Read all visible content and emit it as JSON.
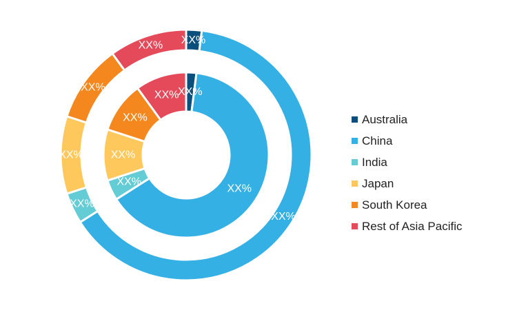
{
  "chart_data": {
    "type": "pie",
    "variant": "nested-donut",
    "categories": [
      "Australia",
      "China",
      "India",
      "Japan",
      "South Korea",
      "Rest of Asia Pacific"
    ],
    "colors": [
      "#0B4F7C",
      "#35B0E4",
      "#63CCD5",
      "#FFC85D",
      "#F5871F",
      "#E44A5A"
    ],
    "series": [
      {
        "ring": "outer",
        "values": [
          2,
          64,
          4,
          10,
          10,
          10
        ],
        "labels": [
          "XX%",
          "XX%",
          "XX%",
          "XX%",
          "XX%",
          "XX%"
        ]
      },
      {
        "ring": "inner",
        "values": [
          2,
          64,
          4,
          10,
          10,
          10
        ],
        "labels": [
          "XX%",
          "XX%",
          "XX%",
          "XX%",
          "XX%",
          "XX%"
        ]
      }
    ],
    "legend_position": "right"
  }
}
